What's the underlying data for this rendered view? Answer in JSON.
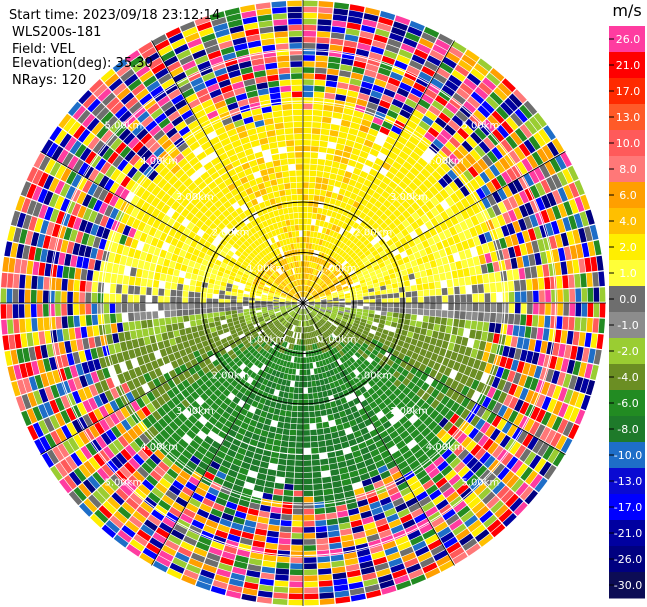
{
  "info": {
    "start_time": "Start time: 2023/09/18 23:12:14",
    "site": "WLS200s-181",
    "field": "Field: VEL",
    "elevation": "Elevation(deg): 35.30",
    "nrays": "NRays: 120"
  },
  "chart_data": {
    "type": "heatmap",
    "projection": "polar-ppi",
    "field": "VEL",
    "units": "m/s",
    "n_rays": 120,
    "elevation_deg": 35.3,
    "range_rings_km": [
      1.0,
      2.0,
      3.0,
      4.0,
      5.0
    ],
    "range_labels": [
      "1.00km",
      "2.00km",
      "3.00km",
      "4.00km",
      "5.00km"
    ],
    "max_range_km": 6.0,
    "spokes_deg": [
      0,
      30,
      60,
      90,
      120,
      150,
      180,
      210,
      240,
      270,
      300,
      330
    ],
    "colorbar": {
      "unit_label": "m/s",
      "ticks": [
        "26.0",
        "21.0",
        "17.0",
        "13.0",
        "10.0",
        "8.0",
        "6.0",
        "4.0",
        "2.0",
        "1.0",
        "0.0",
        "-1.0",
        "-2.0",
        "-4.0",
        "-6.0",
        "-8.0",
        "-10.0",
        "-13.0",
        "-17.0",
        "-21.0",
        "-26.0",
        "-30.0"
      ],
      "colors": [
        "#ff3ca0",
        "#ff0000",
        "#ff2a00",
        "#ff5a28",
        "#ff5a5a",
        "#ff7878",
        "#ff9f00",
        "#ffbf00",
        "#ffee00",
        "#ffff38",
        "#6e6e6e",
        "#8c8c8c",
        "#9acd32",
        "#6b8e23",
        "#228b22",
        "#1e7a2a",
        "#1e6ec8",
        "#0a0ad2",
        "#0000ff",
        "#0000a0",
        "#000080",
        "#0c0c55"
      ]
    },
    "velocity_pattern": {
      "near_range_north_half": "positive 0 to 4 m/s (yellow/orange)",
      "near_range_south_half": "negative -1 to -6 m/s (green)",
      "near_zero_band": "east-west band around 0 m/s (gray)",
      "beyond_approx_km": 3.8,
      "beyond_note": "noisy multicolor"
    }
  }
}
